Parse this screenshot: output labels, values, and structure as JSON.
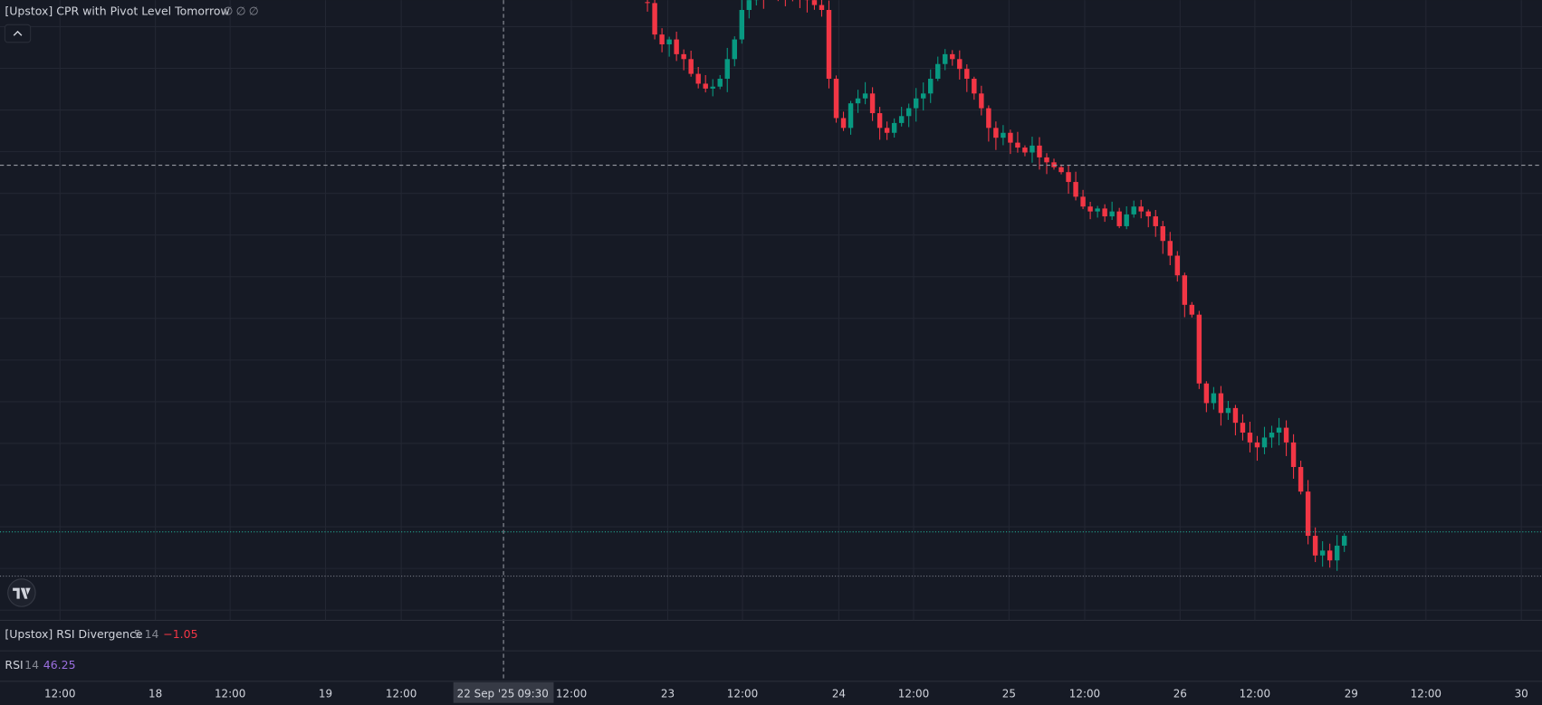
{
  "header": {
    "indicator": "[Upstox] CPR with Pivot Level Tomorrow",
    "values": [
      "∅",
      "∅",
      "∅"
    ]
  },
  "panes": [
    {
      "name": "[Upstox] RSI Divergence",
      "params": "5 14",
      "value": "−1.05"
    },
    {
      "name": "RSI",
      "params": "14",
      "value": "46.25"
    }
  ],
  "time_axis": {
    "labels": [
      "12:00",
      "18",
      "12:00",
      "19",
      "12:00",
      "12:00",
      "23",
      "12:00",
      "24",
      "12:00",
      "25",
      "12:00",
      "26",
      "12:00",
      "29",
      "12:00",
      "30"
    ],
    "crosshair": {
      "date": "22 Sep '25",
      "time": "09:30"
    }
  }
}
